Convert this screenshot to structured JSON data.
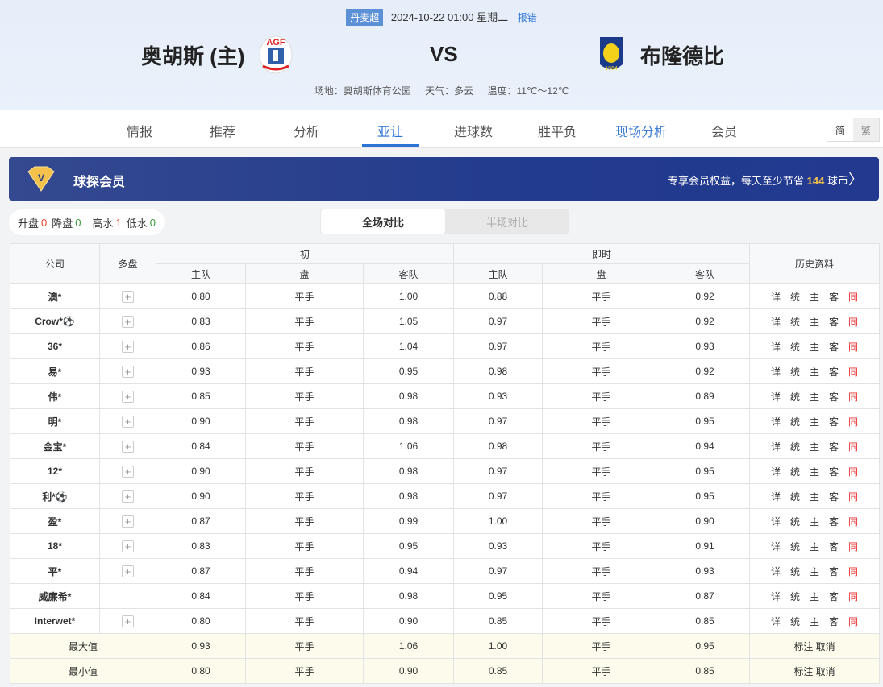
{
  "match": {
    "league": "丹麦超",
    "datetime": "2024-10-22 01:00 星期二",
    "report": "报错",
    "home": "奥胡斯 (主)",
    "vs": "VS",
    "away": "布隆德比",
    "venue": "场地：奥胡斯体育公园",
    "weather": "天气：多云",
    "temperature": "温度：11℃～12℃"
  },
  "nav": {
    "tabs": [
      "情报",
      "推荐",
      "分析",
      "亚让",
      "进球数",
      "胜平负",
      "现场分析",
      "会员"
    ],
    "active": "亚让",
    "lang": [
      "简",
      "繁"
    ]
  },
  "banner": {
    "title": "球探会员",
    "text": "专享会员权益，每天至少节省",
    "amount": "144",
    "unit": "球币"
  },
  "stats": {
    "up_label": "升盘",
    "up": "0",
    "down_label": "降盘",
    "down": "0",
    "high_label": "高水",
    "high": "1",
    "low_label": "低水",
    "low": "0"
  },
  "toggle": {
    "full": "全场对比",
    "half": "半场对比"
  },
  "colors": {
    "red": "#e8452c",
    "green": "#3a9a3a",
    "accent": "#2a74d6"
  },
  "table": {
    "headers": {
      "company": "公司",
      "multi": "多盘",
      "initial": "初",
      "live": "即时",
      "home": "主队",
      "line": "盘",
      "away": "客队",
      "history": "历史资料"
    },
    "history_links": [
      "详",
      "统",
      "主",
      "客",
      "同"
    ],
    "rows": [
      [
        "澳*",
        "0.80",
        "平手",
        "1.00",
        "0.88",
        "平手",
        "0.92",
        true
      ],
      [
        "Crow*⚽",
        "0.83",
        "平手",
        "1.05",
        "0.97",
        "平手",
        "0.92",
        true
      ],
      [
        "36*",
        "0.86",
        "平手",
        "1.04",
        "0.97",
        "平手",
        "0.93",
        true
      ],
      [
        "易*",
        "0.93",
        "平手",
        "0.95",
        "0.98",
        "平手",
        "0.92",
        true
      ],
      [
        "伟*",
        "0.85",
        "平手",
        "0.98",
        "0.93",
        "平手",
        "0.89",
        true
      ],
      [
        "明*",
        "0.90",
        "平手",
        "0.98",
        "0.97",
        "平手",
        "0.95",
        true
      ],
      [
        "金宝*",
        "0.84",
        "平手",
        "1.06",
        "0.98",
        "平手",
        "0.94",
        true
      ],
      [
        "12*",
        "0.90",
        "平手",
        "0.98",
        "0.97",
        "平手",
        "0.95",
        true
      ],
      [
        "利*⚽",
        "0.90",
        "平手",
        "0.98",
        "0.97",
        "平手",
        "0.95",
        true
      ],
      [
        "盈*",
        "0.87",
        "平手",
        "0.99",
        "1.00",
        "平手",
        "0.90",
        true
      ],
      [
        "18*",
        "0.83",
        "平手",
        "0.95",
        "0.93",
        "平手",
        "0.91",
        true
      ],
      [
        "平*",
        "0.87",
        "平手",
        "0.94",
        "0.97",
        "平手",
        "0.93",
        true
      ],
      [
        "威廉希*",
        "0.84",
        "平手",
        "0.98",
        "0.95",
        "平手",
        "0.87",
        false
      ],
      [
        "Interwet*",
        "0.80",
        "平手",
        "0.90",
        "0.85",
        "平手",
        "0.85",
        true
      ]
    ],
    "summary": [
      [
        "最大值",
        "0.93",
        "平手",
        "1.06",
        "1.00",
        "平手",
        "0.95"
      ],
      [
        "最小值",
        "0.80",
        "平手",
        "0.90",
        "0.85",
        "平手",
        "0.85"
      ]
    ],
    "summary_actions": "标注 取消"
  }
}
